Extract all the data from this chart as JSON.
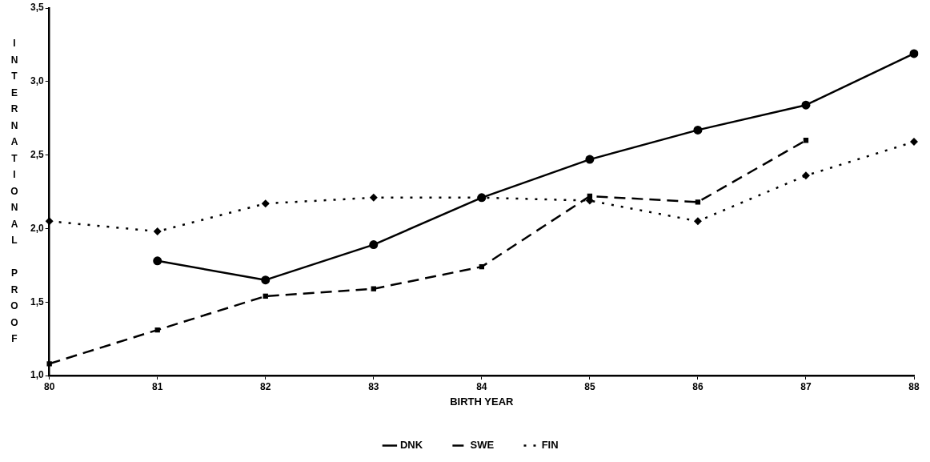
{
  "chart_data": {
    "type": "line",
    "xlabel": "BIRTH YEAR",
    "ylabel": "INTERNATIONAL PROOF",
    "categories": [
      "80",
      "81",
      "82",
      "83",
      "84",
      "85",
      "86",
      "87",
      "88"
    ],
    "series": [
      {
        "name": "DNK",
        "color": "#000000",
        "marker": "circle",
        "line_style": "solid",
        "values": [
          null,
          1.78,
          1.65,
          1.89,
          2.21,
          2.47,
          2.67,
          2.84,
          3.19
        ]
      },
      {
        "name": "SWE",
        "color": "#000000",
        "marker": "square",
        "line_style": "dashed",
        "values": [
          1.08,
          1.31,
          1.54,
          1.59,
          1.74,
          2.22,
          2.18,
          2.6,
          null
        ]
      },
      {
        "name": "FIN",
        "color": "#000000",
        "marker": "diamond",
        "line_style": "dotted",
        "values": [
          2.05,
          1.98,
          2.17,
          2.21,
          2.21,
          2.19,
          2.05,
          2.36,
          2.59
        ]
      }
    ],
    "ylim": [
      1.0,
      3.5
    ],
    "yticks": [
      {
        "value": 1.0,
        "label": "1,0"
      },
      {
        "value": 1.5,
        "label": "1,5"
      },
      {
        "value": 2.0,
        "label": "2,0"
      },
      {
        "value": 2.5,
        "label": "2,5"
      },
      {
        "value": 3.0,
        "label": "3,0"
      },
      {
        "value": 3.5,
        "label": "3,5"
      }
    ],
    "legend": "bottom"
  }
}
